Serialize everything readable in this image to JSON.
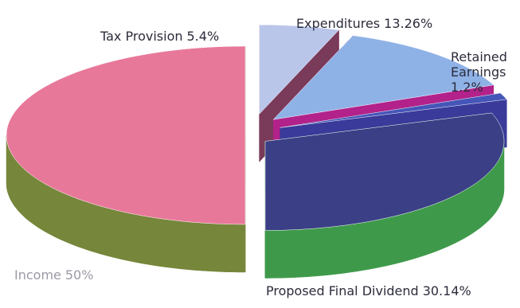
{
  "chart_data": {
    "type": "pie",
    "categories": [
      "Tax Provision",
      "Expenditures",
      "Retained Earnings",
      "Proposed Final Dividend",
      "Income"
    ],
    "values": [
      5.4,
      13.26,
      1.2,
      30.14,
      50
    ],
    "value_labels": [
      "5.4%",
      "13.26%",
      "1.2%",
      "30.14%",
      "50%"
    ],
    "colors": [
      "#b9c6ea",
      "#8fb2e6",
      "#4656b8",
      "#3a3f86",
      "#e8789a"
    ],
    "side_colors": [
      "#7a3a5a",
      "#b2228a",
      "#3a3a9a",
      "#3e9a4a",
      "#76863a"
    ]
  }
}
